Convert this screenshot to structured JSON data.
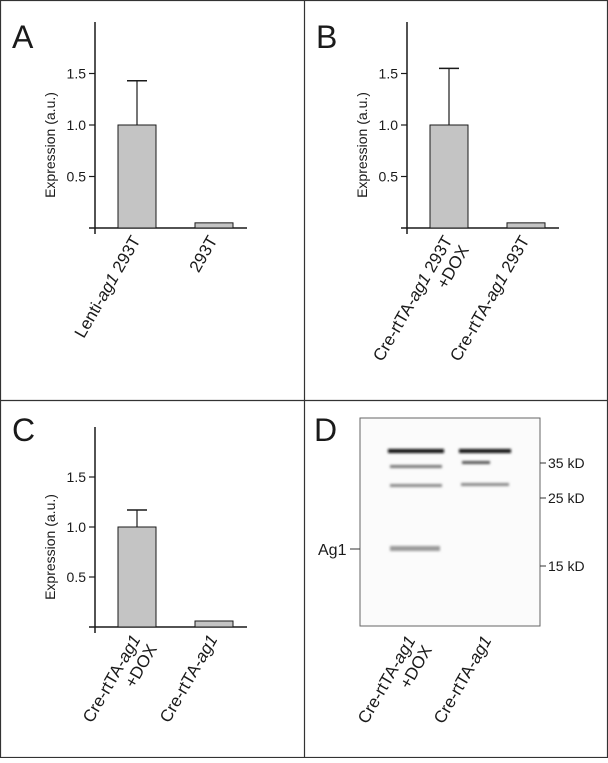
{
  "chart_data": [
    {
      "panel": "A",
      "type": "bar",
      "ylabel": "Expression  (a.u.)",
      "ylim": [
        0,
        2.0
      ],
      "yticks": [
        0.5,
        1.0,
        1.5
      ],
      "ytick_labels": [
        "0.5",
        "1.0",
        "1.5"
      ],
      "categories": [
        "Lenti-ag1 293T",
        "293T"
      ],
      "category_parts": [
        [
          {
            "t": "Lenti-",
            "i": false
          },
          {
            "t": "ag1",
            "i": true
          },
          {
            "t": " 293T",
            "i": false
          }
        ],
        [
          {
            "t": "293T",
            "i": false
          }
        ]
      ],
      "values": [
        1.0,
        0.05
      ],
      "errors": [
        0.43,
        0.0
      ]
    },
    {
      "panel": "B",
      "type": "bar",
      "ylabel": "Expression  (a.u.)",
      "ylim": [
        0,
        2.0
      ],
      "yticks": [
        0.5,
        1.0,
        1.5
      ],
      "ytick_labels": [
        "0.5",
        "1.0",
        "1.5"
      ],
      "categories": [
        "Cre-rtTA-ag1 293T +DOX",
        "Cre-rtTA-ag1 293T"
      ],
      "category_parts": [
        [
          {
            "t": "Cre-rtTA-",
            "i": false
          },
          {
            "t": "ag1",
            "i": true
          },
          {
            "t": " 293T",
            "i": false
          }
        ],
        [
          {
            "t": "Cre-rtTA-",
            "i": false
          },
          {
            "t": "ag1",
            "i": true
          },
          {
            "t": " 293T",
            "i": false
          }
        ]
      ],
      "category_line2": [
        "+DOX",
        ""
      ],
      "values": [
        1.0,
        0.05
      ],
      "errors": [
        0.55,
        0.0
      ]
    },
    {
      "panel": "C",
      "type": "bar",
      "ylabel": "Expression  (a.u.)",
      "ylim": [
        0,
        2.0
      ],
      "yticks": [
        0.5,
        1.0,
        1.5
      ],
      "ytick_labels": [
        "0.5",
        "1.0",
        "1.5"
      ],
      "categories": [
        "Cre-rtTA-ag1 +DOX",
        "Cre-rtTA-ag1"
      ],
      "category_parts": [
        [
          {
            "t": "Cre-rtTA-",
            "i": false
          },
          {
            "t": "ag1",
            "i": true
          }
        ],
        [
          {
            "t": "Cre-rtTA-",
            "i": false
          },
          {
            "t": "ag1",
            "i": true
          }
        ]
      ],
      "category_line2": [
        "+DOX",
        ""
      ],
      "values": [
        1.0,
        0.06
      ],
      "errors": [
        0.17,
        0.0
      ]
    }
  ],
  "blot": {
    "panel": "D",
    "markers": [
      "35 kD",
      "25 kD",
      "15 kD"
    ],
    "band_label": "Ag1",
    "lanes": [
      {
        "parts": [
          {
            "t": "Cre-rtTA-",
            "i": false
          },
          {
            "t": "ag1",
            "i": true
          }
        ],
        "line2": "+DOX"
      },
      {
        "parts": [
          {
            "t": "Cre-rtTA-",
            "i": false
          },
          {
            "t": "ag1",
            "i": true
          }
        ],
        "line2": ""
      }
    ]
  },
  "colors": {
    "bar_fill": "#c4c4c4",
    "line": "#1a1a1a",
    "border": "#333333"
  }
}
